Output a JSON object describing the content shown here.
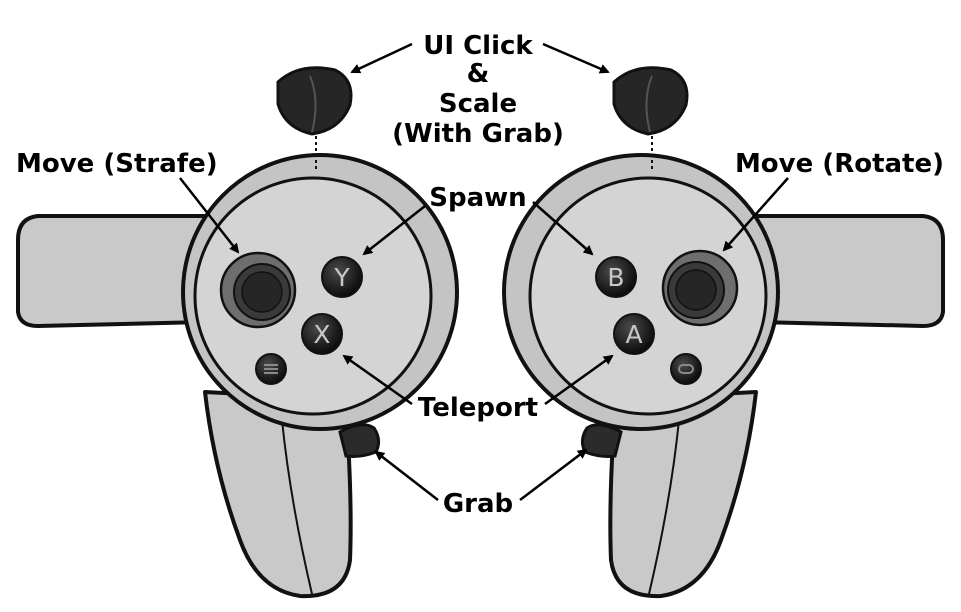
{
  "labels": {
    "ui_click_line1": "UI Click",
    "ui_click_line2": "&",
    "ui_click_line3": "Scale",
    "ui_click_line4": "(With Grab)",
    "move_strafe": "Move (Strafe)",
    "move_rotate": "Move (Rotate)",
    "spawn": "Spawn",
    "teleport": "Teleport",
    "grab": "Grab"
  },
  "buttons": {
    "left_top": "Y",
    "left_bottom": "X",
    "right_top": "B",
    "right_bottom": "A"
  },
  "colors": {
    "controller_body": "#c9c9c9",
    "controller_face": "#d4d4d4",
    "outline": "#111111",
    "thumbstick_ring": "#6e6e6e",
    "thumbstick_cap": "#2a2a2a",
    "face_button": "#151515",
    "trigger": "#2b2b2b"
  },
  "icons": {
    "menu_button": "menu-icon",
    "oculus_button": "oculus-icon"
  }
}
